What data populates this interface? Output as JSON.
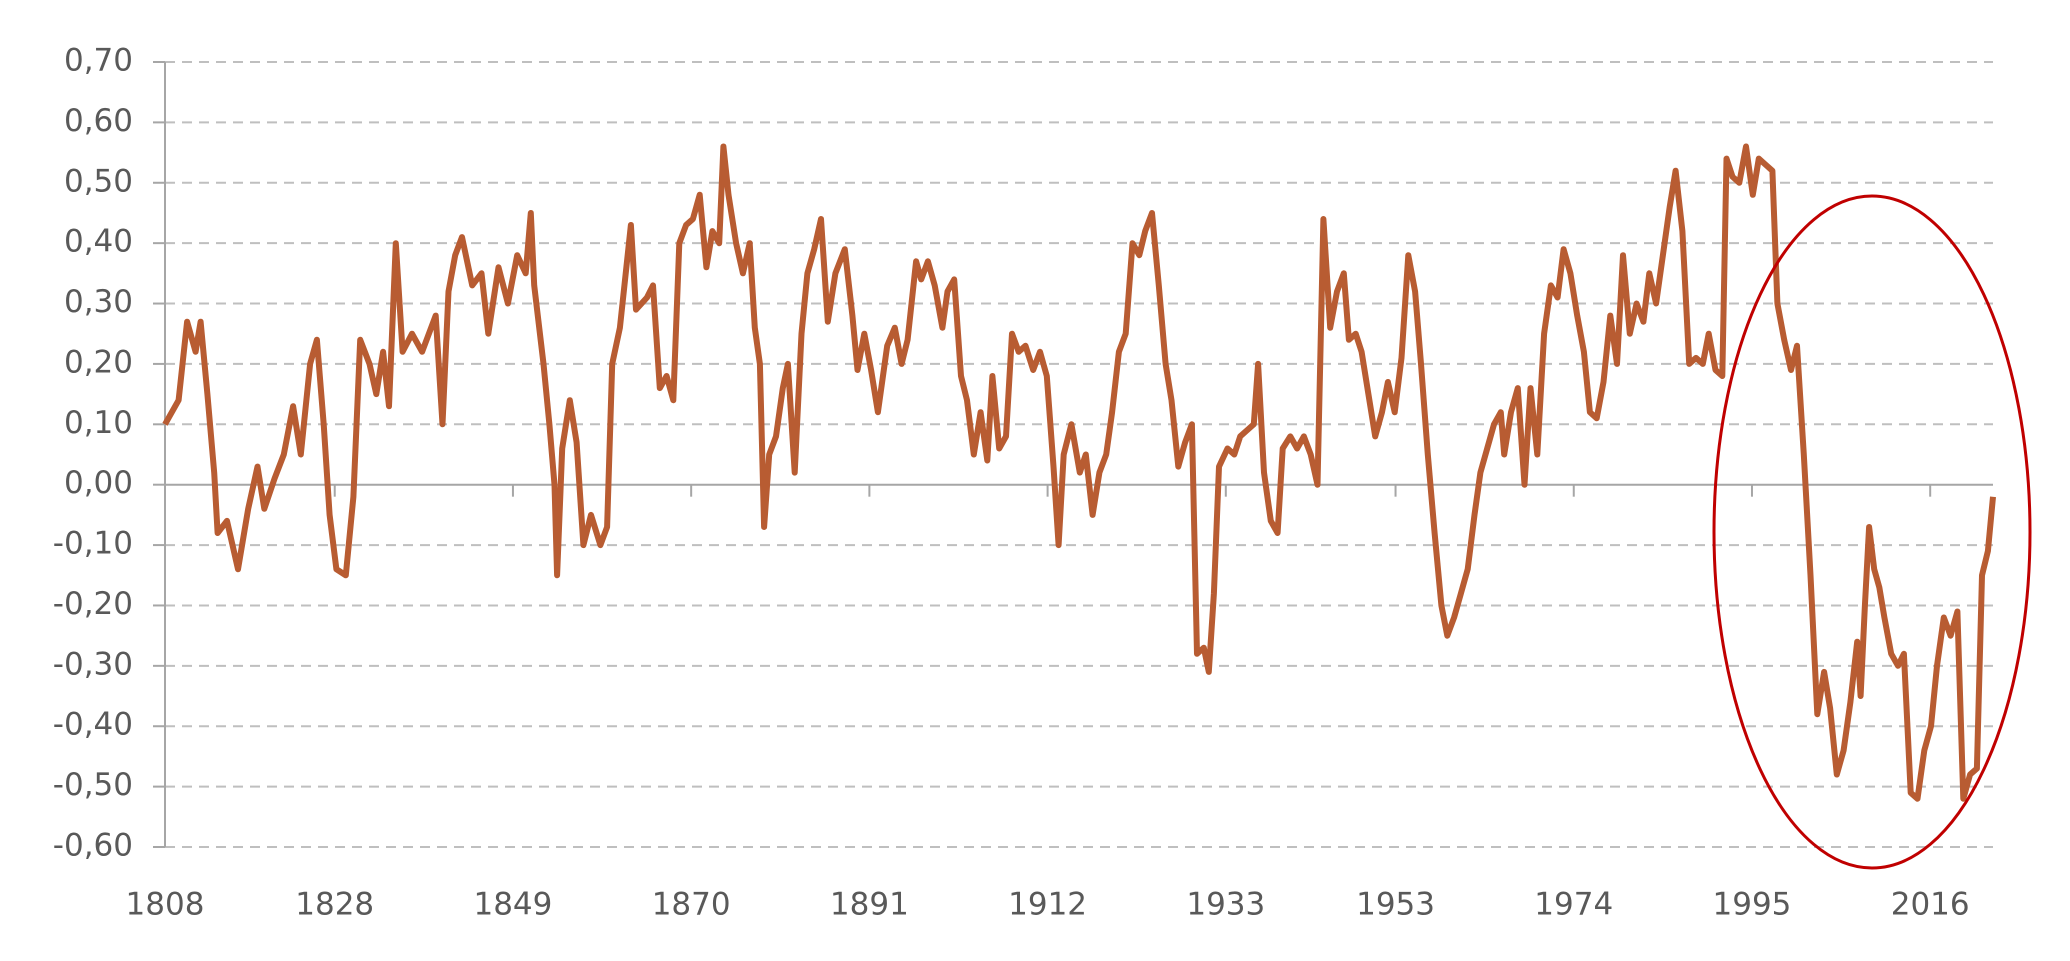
{
  "chart_data": {
    "type": "line",
    "x": [
      1808.0,
      1809.6,
      1810.6,
      1811.6,
      1812.2,
      1813.0,
      1813.8,
      1814.2,
      1815.3,
      1816.6,
      1817.8,
      1818.9,
      1819.7,
      1820.9,
      1822.0,
      1823.1,
      1824.0,
      1825.1,
      1825.9,
      1826.7,
      1827.4,
      1828.2,
      1829.3,
      1830.2,
      1831.0,
      1832.1,
      1832.9,
      1833.7,
      1834.4,
      1835.2,
      1836.0,
      1837.1,
      1838.3,
      1839.9,
      1840.7,
      1841.4,
      1842.2,
      1843.0,
      1844.2,
      1845.3,
      1846.1,
      1847.3,
      1848.4,
      1849.5,
      1850.5,
      1851.1,
      1851.5,
      1852.6,
      1853.3,
      1853.9,
      1854.2,
      1854.8,
      1855.7,
      1856.5,
      1857.3,
      1858.2,
      1859.3,
      1860.1,
      1860.7,
      1861.6,
      1862.9,
      1863.5,
      1864.8,
      1865.5,
      1866.3,
      1867.1,
      1867.9,
      1868.6,
      1869.4,
      1870.2,
      1871.0,
      1871.8,
      1872.5,
      1873.3,
      1873.8,
      1874.4,
      1875.3,
      1876.1,
      1876.9,
      1877.5,
      1878.1,
      1878.6,
      1879.2,
      1880.0,
      1880.8,
      1881.4,
      1882.2,
      1883.0,
      1883.7,
      1884.5,
      1885.3,
      1886.1,
      1887.0,
      1888.1,
      1889.0,
      1889.6,
      1890.4,
      1891.2,
      1892.0,
      1893.1,
      1894.0,
      1894.8,
      1895.5,
      1896.5,
      1897.1,
      1897.9,
      1898.7,
      1899.6,
      1900.2,
      1901.0,
      1901.8,
      1902.5,
      1903.3,
      1904.1,
      1904.9,
      1905.5,
      1906.3,
      1907.1,
      1907.8,
      1908.6,
      1909.4,
      1910.3,
      1911.1,
      1911.9,
      1912.7,
      1913.3,
      1913.9,
      1914.8,
      1915.8,
      1916.5,
      1917.3,
      1918.1,
      1918.9,
      1919.6,
      1920.4,
      1921.2,
      1922.0,
      1922.8,
      1923.5,
      1924.3,
      1925.1,
      1925.9,
      1926.6,
      1927.4,
      1928.2,
      1929.0,
      1929.6,
      1930.4,
      1931.0,
      1931.6,
      1932.2,
      1933.2,
      1934.0,
      1934.7,
      1935.5,
      1936.3,
      1936.8,
      1937.5,
      1938.3,
      1939.1,
      1939.7,
      1940.6,
      1941.4,
      1942.2,
      1943.0,
      1943.8,
      1944.5,
      1945.3,
      1946.1,
      1946.9,
      1947.5,
      1948.3,
      1949.0,
      1949.8,
      1950.6,
      1951.4,
      1952.1,
      1952.9,
      1953.7,
      1954.5,
      1955.3,
      1956.0,
      1956.8,
      1957.6,
      1958.4,
      1959.1,
      1959.9,
      1960.7,
      1961.5,
      1962.3,
      1963.0,
      1963.8,
      1964.6,
      1965.4,
      1965.8,
      1966.6,
      1967.4,
      1968.2,
      1968.9,
      1969.7,
      1970.5,
      1971.3,
      1972.1,
      1972.8,
      1973.6,
      1974.4,
      1975.2,
      1975.9,
      1976.7,
      1977.5,
      1978.3,
      1979.1,
      1979.8,
      1980.6,
      1981.4,
      1982.2,
      1982.9,
      1983.7,
      1984.5,
      1985.3,
      1986.0,
      1986.8,
      1987.6,
      1988.4,
      1989.2,
      1989.9,
      1990.7,
      1991.5,
      1992.0,
      1992.7,
      1993.5,
      1994.3,
      1995.1,
      1995.8,
      1996.6,
      1997.4,
      1998.0,
      1998.8,
      1999.6,
      2000.3,
      2001.1,
      2001.9,
      2002.7,
      2003.5,
      2004.2,
      2005.0,
      2005.8,
      2006.6,
      2007.4,
      2007.8,
      2008.3,
      2008.8,
      2009.4,
      2010.0,
      2010.6,
      2011.4,
      2012.2,
      2012.9,
      2013.7,
      2014.5,
      2015.3,
      2016.1,
      2016.8,
      2017.6,
      2018.4,
      2019.2,
      2019.9,
      2020.7,
      2021.5,
      2022.1,
      2022.8,
      2023.4
    ],
    "values": [
      0.1,
      0.14,
      0.27,
      0.22,
      0.27,
      0.15,
      0.02,
      -0.08,
      -0.06,
      -0.14,
      -0.04,
      0.03,
      -0.04,
      0.01,
      0.05,
      0.13,
      0.05,
      0.2,
      0.24,
      0.1,
      -0.05,
      -0.14,
      -0.15,
      -0.02,
      0.24,
      0.2,
      0.15,
      0.22,
      0.13,
      0.4,
      0.22,
      0.25,
      0.22,
      0.28,
      0.1,
      0.32,
      0.38,
      0.41,
      0.33,
      0.35,
      0.25,
      0.36,
      0.3,
      0.38,
      0.35,
      0.45,
      0.33,
      0.2,
      0.1,
      0.0,
      -0.15,
      0.06,
      0.14,
      0.07,
      -0.1,
      -0.05,
      -0.1,
      -0.07,
      0.2,
      0.26,
      0.43,
      0.29,
      0.31,
      0.33,
      0.16,
      0.18,
      0.14,
      0.4,
      0.43,
      0.44,
      0.48,
      0.36,
      0.42,
      0.4,
      0.56,
      0.48,
      0.4,
      0.35,
      0.4,
      0.26,
      0.2,
      -0.07,
      0.05,
      0.08,
      0.16,
      0.2,
      0.02,
      0.25,
      0.35,
      0.39,
      0.44,
      0.27,
      0.35,
      0.39,
      0.28,
      0.19,
      0.25,
      0.19,
      0.12,
      0.23,
      0.26,
      0.2,
      0.24,
      0.37,
      0.34,
      0.37,
      0.33,
      0.26,
      0.32,
      0.34,
      0.18,
      0.14,
      0.05,
      0.12,
      0.04,
      0.18,
      0.06,
      0.08,
      0.25,
      0.22,
      0.23,
      0.19,
      0.22,
      0.18,
      0.03,
      -0.1,
      0.05,
      0.1,
      0.02,
      0.05,
      -0.05,
      0.02,
      0.05,
      0.12,
      0.22,
      0.25,
      0.4,
      0.38,
      0.42,
      0.45,
      0.33,
      0.2,
      0.14,
      0.03,
      0.07,
      0.1,
      -0.28,
      -0.27,
      -0.31,
      -0.18,
      0.03,
      0.06,
      0.05,
      0.08,
      0.09,
      0.1,
      0.2,
      0.02,
      -0.06,
      -0.08,
      0.06,
      0.08,
      0.06,
      0.08,
      0.05,
      0.0,
      0.44,
      0.26,
      0.32,
      0.35,
      0.24,
      0.25,
      0.22,
      0.15,
      0.08,
      0.12,
      0.17,
      0.12,
      0.21,
      0.38,
      0.32,
      0.2,
      0.05,
      -0.08,
      -0.2,
      -0.25,
      -0.22,
      -0.18,
      -0.14,
      -0.05,
      0.02,
      0.06,
      0.1,
      0.12,
      0.05,
      0.12,
      0.16,
      0.0,
      0.16,
      0.05,
      0.25,
      0.33,
      0.31,
      0.39,
      0.35,
      0.28,
      0.22,
      0.12,
      0.11,
      0.17,
      0.28,
      0.2,
      0.38,
      0.25,
      0.3,
      0.27,
      0.35,
      0.3,
      0.38,
      0.46,
      0.52,
      0.42,
      0.2,
      0.21,
      0.2,
      0.25,
      0.19,
      0.18,
      0.54,
      0.51,
      0.5,
      0.56,
      0.48,
      0.54,
      0.53,
      0.52,
      0.3,
      0.24,
      0.19,
      0.23,
      0.05,
      -0.15,
      -0.38,
      -0.31,
      -0.37,
      -0.48,
      -0.44,
      -0.36,
      -0.26,
      -0.35,
      -0.2,
      -0.07,
      -0.14,
      -0.17,
      -0.22,
      -0.28,
      -0.3,
      -0.28,
      -0.51,
      -0.52,
      -0.44,
      -0.4,
      -0.3,
      -0.22,
      -0.25,
      -0.21,
      -0.52,
      -0.48,
      -0.47,
      -0.15,
      -0.11,
      -0.02
    ],
    "color": "#b85c32",
    "xlim": [
      1808,
      2023.4
    ],
    "xticks": [
      1808,
      1828,
      1849,
      1870,
      1891,
      1912,
      1933,
      1953,
      1974,
      1995,
      2016
    ],
    "ylim": [
      -0.6,
      0.7
    ],
    "yticks": [
      {
        "value": 0.7,
        "label": "0,70"
      },
      {
        "value": 0.6,
        "label": "0,60"
      },
      {
        "value": 0.5,
        "label": "0,50"
      },
      {
        "value": 0.4,
        "label": "0,40"
      },
      {
        "value": 0.3,
        "label": "0,30"
      },
      {
        "value": 0.2,
        "label": "0,20"
      },
      {
        "value": 0.1,
        "label": "0,10"
      },
      {
        "value": 0,
        "label": "0,00"
      },
      {
        "value": -0.1,
        "label": "-0,10"
      },
      {
        "value": -0.2,
        "label": "-0,20"
      },
      {
        "value": -0.3,
        "label": "-0,30"
      },
      {
        "value": -0.4,
        "label": "-0,40"
      },
      {
        "value": -0.5,
        "label": "-0,50"
      },
      {
        "value": -0.6,
        "label": "-0,60"
      }
    ],
    "grid": true
  }
}
